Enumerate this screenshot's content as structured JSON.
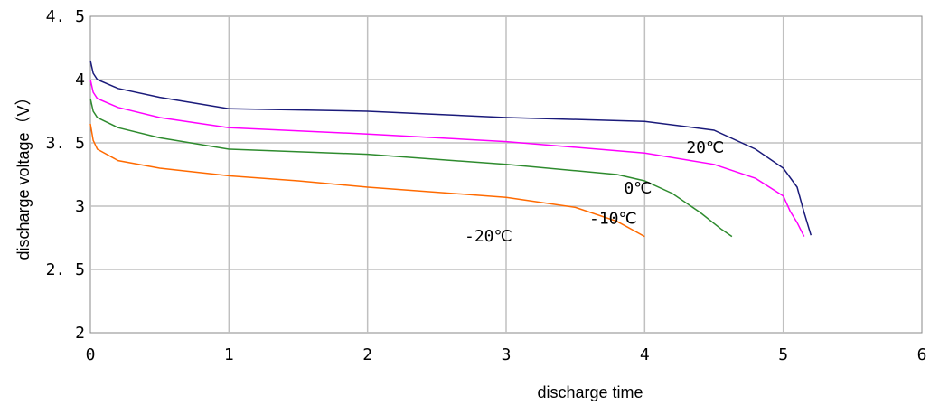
{
  "chart_data": {
    "type": "line",
    "title": "",
    "xlabel": "discharge time",
    "ylabel": "discharge voltage（V）",
    "xlim": [
      0,
      6
    ],
    "ylim": [
      2,
      4.5
    ],
    "xticks": [
      "0",
      "1",
      "2",
      "3",
      "4",
      "5",
      "6"
    ],
    "yticks": [
      "2",
      "2. 5",
      "3",
      "3. 5",
      "4",
      "4. 5"
    ],
    "grid": true,
    "legend": "none",
    "series": [
      {
        "name": "20℃",
        "color": "#1a1a7a",
        "points": [
          [
            0,
            4.15
          ],
          [
            0.02,
            4.05
          ],
          [
            0.05,
            4.0
          ],
          [
            0.2,
            3.93
          ],
          [
            0.5,
            3.86
          ],
          [
            1.0,
            3.77
          ],
          [
            2.0,
            3.75
          ],
          [
            3.0,
            3.7
          ],
          [
            4.0,
            3.67
          ],
          [
            4.5,
            3.6
          ],
          [
            4.8,
            3.45
          ],
          [
            5.0,
            3.3
          ],
          [
            5.1,
            3.15
          ],
          [
            5.15,
            2.95
          ],
          [
            5.2,
            2.77
          ]
        ]
      },
      {
        "name": "-10℃",
        "color": "#ff00ff",
        "points": [
          [
            0,
            4.0
          ],
          [
            0.02,
            3.9
          ],
          [
            0.05,
            3.85
          ],
          [
            0.2,
            3.78
          ],
          [
            0.5,
            3.7
          ],
          [
            1.0,
            3.62
          ],
          [
            2.0,
            3.57
          ],
          [
            3.0,
            3.51
          ],
          [
            4.0,
            3.42
          ],
          [
            4.5,
            3.33
          ],
          [
            4.8,
            3.22
          ],
          [
            5.0,
            3.08
          ],
          [
            5.05,
            2.96
          ],
          [
            5.1,
            2.87
          ],
          [
            5.15,
            2.76
          ]
        ]
      },
      {
        "name": "0℃",
        "color": "#2e8b2e",
        "points": [
          [
            0,
            3.85
          ],
          [
            0.02,
            3.75
          ],
          [
            0.05,
            3.7
          ],
          [
            0.2,
            3.62
          ],
          [
            0.5,
            3.54
          ],
          [
            1.0,
            3.45
          ],
          [
            2.0,
            3.41
          ],
          [
            3.0,
            3.33
          ],
          [
            3.5,
            3.28
          ],
          [
            3.8,
            3.25
          ],
          [
            4.0,
            3.2
          ],
          [
            4.2,
            3.1
          ],
          [
            4.4,
            2.95
          ],
          [
            4.55,
            2.82
          ],
          [
            4.63,
            2.76
          ]
        ]
      },
      {
        "name": "-20℃",
        "color": "#ff6a00",
        "points": [
          [
            0,
            3.65
          ],
          [
            0.02,
            3.52
          ],
          [
            0.05,
            3.45
          ],
          [
            0.2,
            3.36
          ],
          [
            0.5,
            3.3
          ],
          [
            1.0,
            3.24
          ],
          [
            1.5,
            3.2
          ],
          [
            2.0,
            3.15
          ],
          [
            3.0,
            3.07
          ],
          [
            3.5,
            2.99
          ],
          [
            3.8,
            2.88
          ],
          [
            4.0,
            2.76
          ]
        ]
      }
    ],
    "labels": [
      {
        "text": "20℃",
        "series": 0,
        "x": 4.3,
        "y": 3.42
      },
      {
        "text": "0℃",
        "series": 2,
        "x": 3.85,
        "y": 3.1
      },
      {
        "text": "-10℃",
        "series": 1,
        "x": 3.6,
        "y": 2.86
      },
      {
        "text": "-20℃",
        "series": 3,
        "x": 2.7,
        "y": 2.72
      }
    ]
  }
}
